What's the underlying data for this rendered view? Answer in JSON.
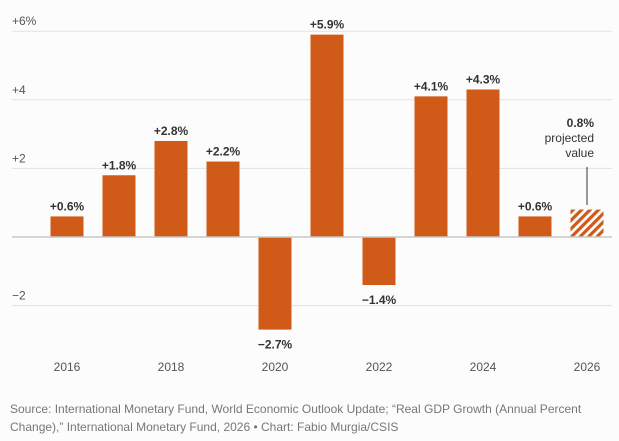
{
  "chart_data": {
    "type": "bar",
    "title": "",
    "xlabel": "",
    "ylabel": "",
    "categories": [
      "2016",
      "2017",
      "2018",
      "2019",
      "2020",
      "2021",
      "2022",
      "2023",
      "2024",
      "2025",
      "2026"
    ],
    "values": [
      0.6,
      1.8,
      2.8,
      2.2,
      -2.7,
      5.9,
      -1.4,
      4.1,
      4.3,
      0.6,
      0.8
    ],
    "data_labels": [
      "+0.6%",
      "+1.8%",
      "+2.8%",
      "+2.2%",
      "−2.7%",
      "+5.9%",
      "−1.4%",
      "+4.1%",
      "+4.3%",
      "+0.6%",
      ""
    ],
    "projected": [
      false,
      false,
      false,
      false,
      false,
      false,
      false,
      false,
      false,
      false,
      true
    ],
    "x_tick_labels": [
      "2016",
      "",
      "2018",
      "",
      "2020",
      "",
      "2022",
      "",
      "2024",
      "",
      "2026"
    ],
    "y_ticks": [
      6,
      4,
      2,
      -2
    ],
    "y_tick_labels": [
      "+6%",
      "+4",
      "+2",
      "−2"
    ],
    "ylim": [
      -3.4,
      6.3
    ],
    "grid": true,
    "bar_color": "#d05a17",
    "annotation": {
      "value_label": "0.8%",
      "line1": "projected",
      "line2": "value"
    }
  },
  "source": "Source: International Monetary Fund, World Economic Outlook Update; “Real GDP Growth (Annual Percent Change),” International Monetary Fund, 2026 • Chart: Fabio Murgia/CSIS"
}
